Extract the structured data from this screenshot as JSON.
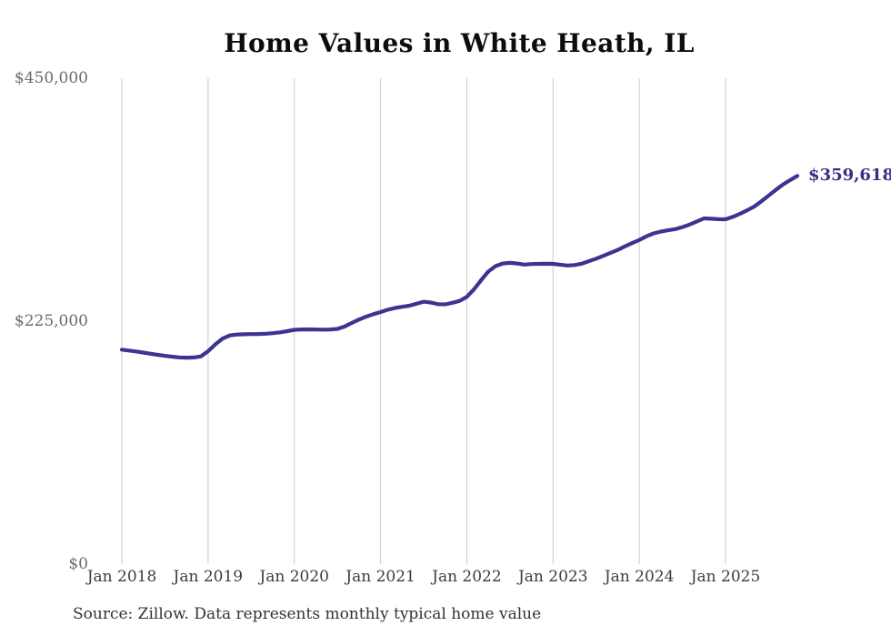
{
  "page": {
    "background": "#ffffff"
  },
  "header": {
    "title": "Home Values in White Heath, IL"
  },
  "footer": {
    "source_note": "Source: Zillow. Data represents monthly typical home value"
  },
  "chart_data": {
    "type": "line",
    "title": "Home Values in White Heath, IL",
    "series_name": "Monthly typical home value",
    "unit": "USD",
    "ylim": [
      0,
      450000
    ],
    "grid": "vertical",
    "legend": "none",
    "line_color": "#3b3490",
    "grid_color": "#cccccc",
    "y_ticks": [
      {
        "value": 450000,
        "label": "$450,000"
      },
      {
        "value": 225000,
        "label": "$225,000"
      },
      {
        "value": 0,
        "label": "$0"
      }
    ],
    "x_tick_labels": [
      "Jan 2018",
      "Jan 2019",
      "Jan 2020",
      "Jan 2021",
      "Jan 2022",
      "Jan 2023",
      "Jan 2024",
      "Jan 2025"
    ],
    "end_label": {
      "text": "$359,618",
      "value": 359618,
      "color": "#343083"
    },
    "points": [
      [
        "Jan 2018",
        198600
      ],
      [
        "Feb 2018",
        197800
      ],
      [
        "Mar 2018",
        196900
      ],
      [
        "Apr 2018",
        195900
      ],
      [
        "May 2018",
        194800
      ],
      [
        "Jun 2018",
        193800
      ],
      [
        "Jul 2018",
        192900
      ],
      [
        "Aug 2018",
        192100
      ],
      [
        "Sep 2018",
        191500
      ],
      [
        "Oct 2018",
        191200
      ],
      [
        "Nov 2018",
        191400
      ],
      [
        "Dec 2018",
        192400
      ],
      [
        "Jan 2019",
        197200
      ],
      [
        "Feb 2019",
        203500
      ],
      [
        "Mar 2019",
        208800
      ],
      [
        "Apr 2019",
        211800
      ],
      [
        "May 2019",
        212600
      ],
      [
        "Jun 2019",
        212900
      ],
      [
        "Jul 2019",
        213000
      ],
      [
        "Aug 2019",
        213100
      ],
      [
        "Sep 2019",
        213400
      ],
      [
        "Oct 2019",
        213900
      ],
      [
        "Nov 2019",
        214600
      ],
      [
        "Dec 2019",
        215700
      ],
      [
        "Jan 2020",
        217000
      ],
      [
        "Feb 2020",
        217300
      ],
      [
        "Mar 2020",
        217400
      ],
      [
        "Apr 2020",
        217300
      ],
      [
        "May 2020",
        217200
      ],
      [
        "Jun 2020",
        217300
      ],
      [
        "Jul 2020",
        217800
      ],
      [
        "Aug 2020",
        220000
      ],
      [
        "Sep 2020",
        223400
      ],
      [
        "Oct 2020",
        226500
      ],
      [
        "Nov 2020",
        229200
      ],
      [
        "Dec 2020",
        231500
      ],
      [
        "Jan 2021",
        233400
      ],
      [
        "Feb 2021",
        235600
      ],
      [
        "Mar 2021",
        237200
      ],
      [
        "Apr 2021",
        238300
      ],
      [
        "May 2021",
        239300
      ],
      [
        "Jun 2021",
        241200
      ],
      [
        "Jul 2021",
        243000
      ],
      [
        "Aug 2021",
        242300
      ],
      [
        "Sep 2021",
        240800
      ],
      [
        "Oct 2021",
        240600
      ],
      [
        "Nov 2021",
        242000
      ],
      [
        "Dec 2021",
        243800
      ],
      [
        "Jan 2022",
        247500
      ],
      [
        "Feb 2022",
        254500
      ],
      [
        "Mar 2022",
        263000
      ],
      [
        "Apr 2022",
        271000
      ],
      [
        "May 2022",
        276000
      ],
      [
        "Jun 2022",
        278400
      ],
      [
        "Jul 2022",
        279000
      ],
      [
        "Aug 2022",
        278400
      ],
      [
        "Sep 2022",
        277400
      ],
      [
        "Oct 2022",
        277900
      ],
      [
        "Nov 2022",
        278100
      ],
      [
        "Dec 2022",
        278200
      ],
      [
        "Jan 2023",
        278100
      ],
      [
        "Feb 2023",
        277300
      ],
      [
        "Mar 2023",
        276600
      ],
      [
        "Apr 2023",
        277000
      ],
      [
        "May 2023",
        278300
      ],
      [
        "Jun 2023",
        280600
      ],
      [
        "Jul 2023",
        282900
      ],
      [
        "Aug 2023",
        285500
      ],
      [
        "Sep 2023",
        288300
      ],
      [
        "Oct 2023",
        291000
      ],
      [
        "Nov 2023",
        294300
      ],
      [
        "Dec 2023",
        297300
      ],
      [
        "Jan 2024",
        300200
      ],
      [
        "Feb 2024",
        303600
      ],
      [
        "Mar 2024",
        306300
      ],
      [
        "Apr 2024",
        308000
      ],
      [
        "May 2024",
        309200
      ],
      [
        "Jun 2024",
        310300
      ],
      [
        "Jul 2024",
        312100
      ],
      [
        "Aug 2024",
        314500
      ],
      [
        "Sep 2024",
        317400
      ],
      [
        "Oct 2024",
        320200
      ],
      [
        "Nov 2024",
        319900
      ],
      [
        "Dec 2024",
        319500
      ],
      [
        "Jan 2025",
        319400
      ],
      [
        "Feb 2025",
        321600
      ],
      [
        "Mar 2025",
        324400
      ],
      [
        "Apr 2025",
        327600
      ],
      [
        "May 2025",
        331200
      ],
      [
        "Jun 2025",
        336100
      ],
      [
        "Jul 2025",
        341300
      ],
      [
        "Aug 2025",
        346600
      ],
      [
        "Sep 2025",
        351600
      ],
      [
        "Oct 2025",
        355700
      ],
      [
        "Nov 2025",
        359618
      ]
    ]
  }
}
